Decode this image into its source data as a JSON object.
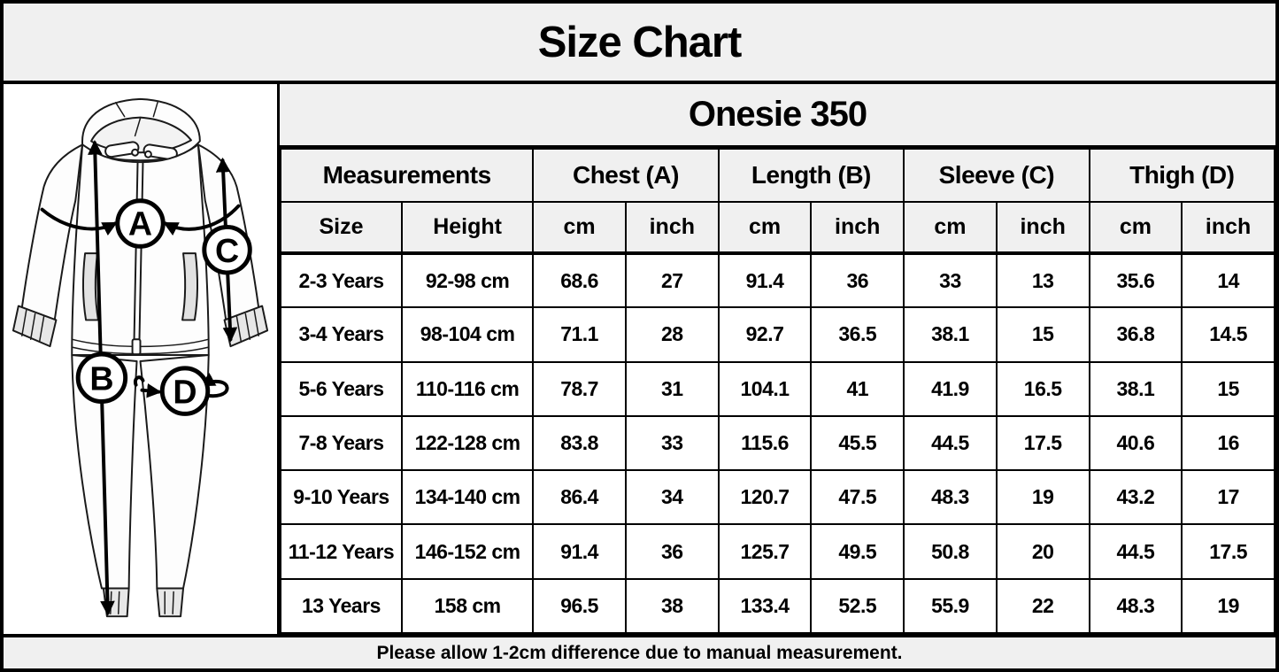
{
  "title": "Size Chart",
  "product": "Onesie 350",
  "note": "Please allow 1-2cm difference due to manual measurement.",
  "colors": {
    "header_bg": "#f0f0f0",
    "row_bg": "#ffffff",
    "border": "#000000",
    "text": "#000000"
  },
  "diagram": {
    "labels": [
      "A",
      "B",
      "C",
      "D"
    ]
  },
  "table": {
    "group_headers": [
      {
        "label": "Measurements",
        "span": 2
      },
      {
        "label": "Chest (A)",
        "span": 2
      },
      {
        "label": "Length (B)",
        "span": 2
      },
      {
        "label": "Sleeve (C)",
        "span": 2
      },
      {
        "label": "Thigh (D)",
        "span": 2
      }
    ],
    "sub_headers": [
      "Size",
      "Height",
      "cm",
      "inch",
      "cm",
      "inch",
      "cm",
      "inch",
      "cm",
      "inch"
    ],
    "rows": [
      [
        "2-3 Years",
        "92-98 cm",
        "68.6",
        "27",
        "91.4",
        "36",
        "33",
        "13",
        "35.6",
        "14"
      ],
      [
        "3-4 Years",
        "98-104 cm",
        "71.1",
        "28",
        "92.7",
        "36.5",
        "38.1",
        "15",
        "36.8",
        "14.5"
      ],
      [
        "5-6 Years",
        "110-116 cm",
        "78.7",
        "31",
        "104.1",
        "41",
        "41.9",
        "16.5",
        "38.1",
        "15"
      ],
      [
        "7-8 Years",
        "122-128 cm",
        "83.8",
        "33",
        "115.6",
        "45.5",
        "44.5",
        "17.5",
        "40.6",
        "16"
      ],
      [
        "9-10 Years",
        "134-140 cm",
        "86.4",
        "34",
        "120.7",
        "47.5",
        "48.3",
        "19",
        "43.2",
        "17"
      ],
      [
        "11-12 Years",
        "146-152 cm",
        "91.4",
        "36",
        "125.7",
        "49.5",
        "50.8",
        "20",
        "44.5",
        "17.5"
      ],
      [
        "13 Years",
        "158 cm",
        "96.5",
        "38",
        "133.4",
        "52.5",
        "55.9",
        "22",
        "48.3",
        "19"
      ]
    ]
  }
}
